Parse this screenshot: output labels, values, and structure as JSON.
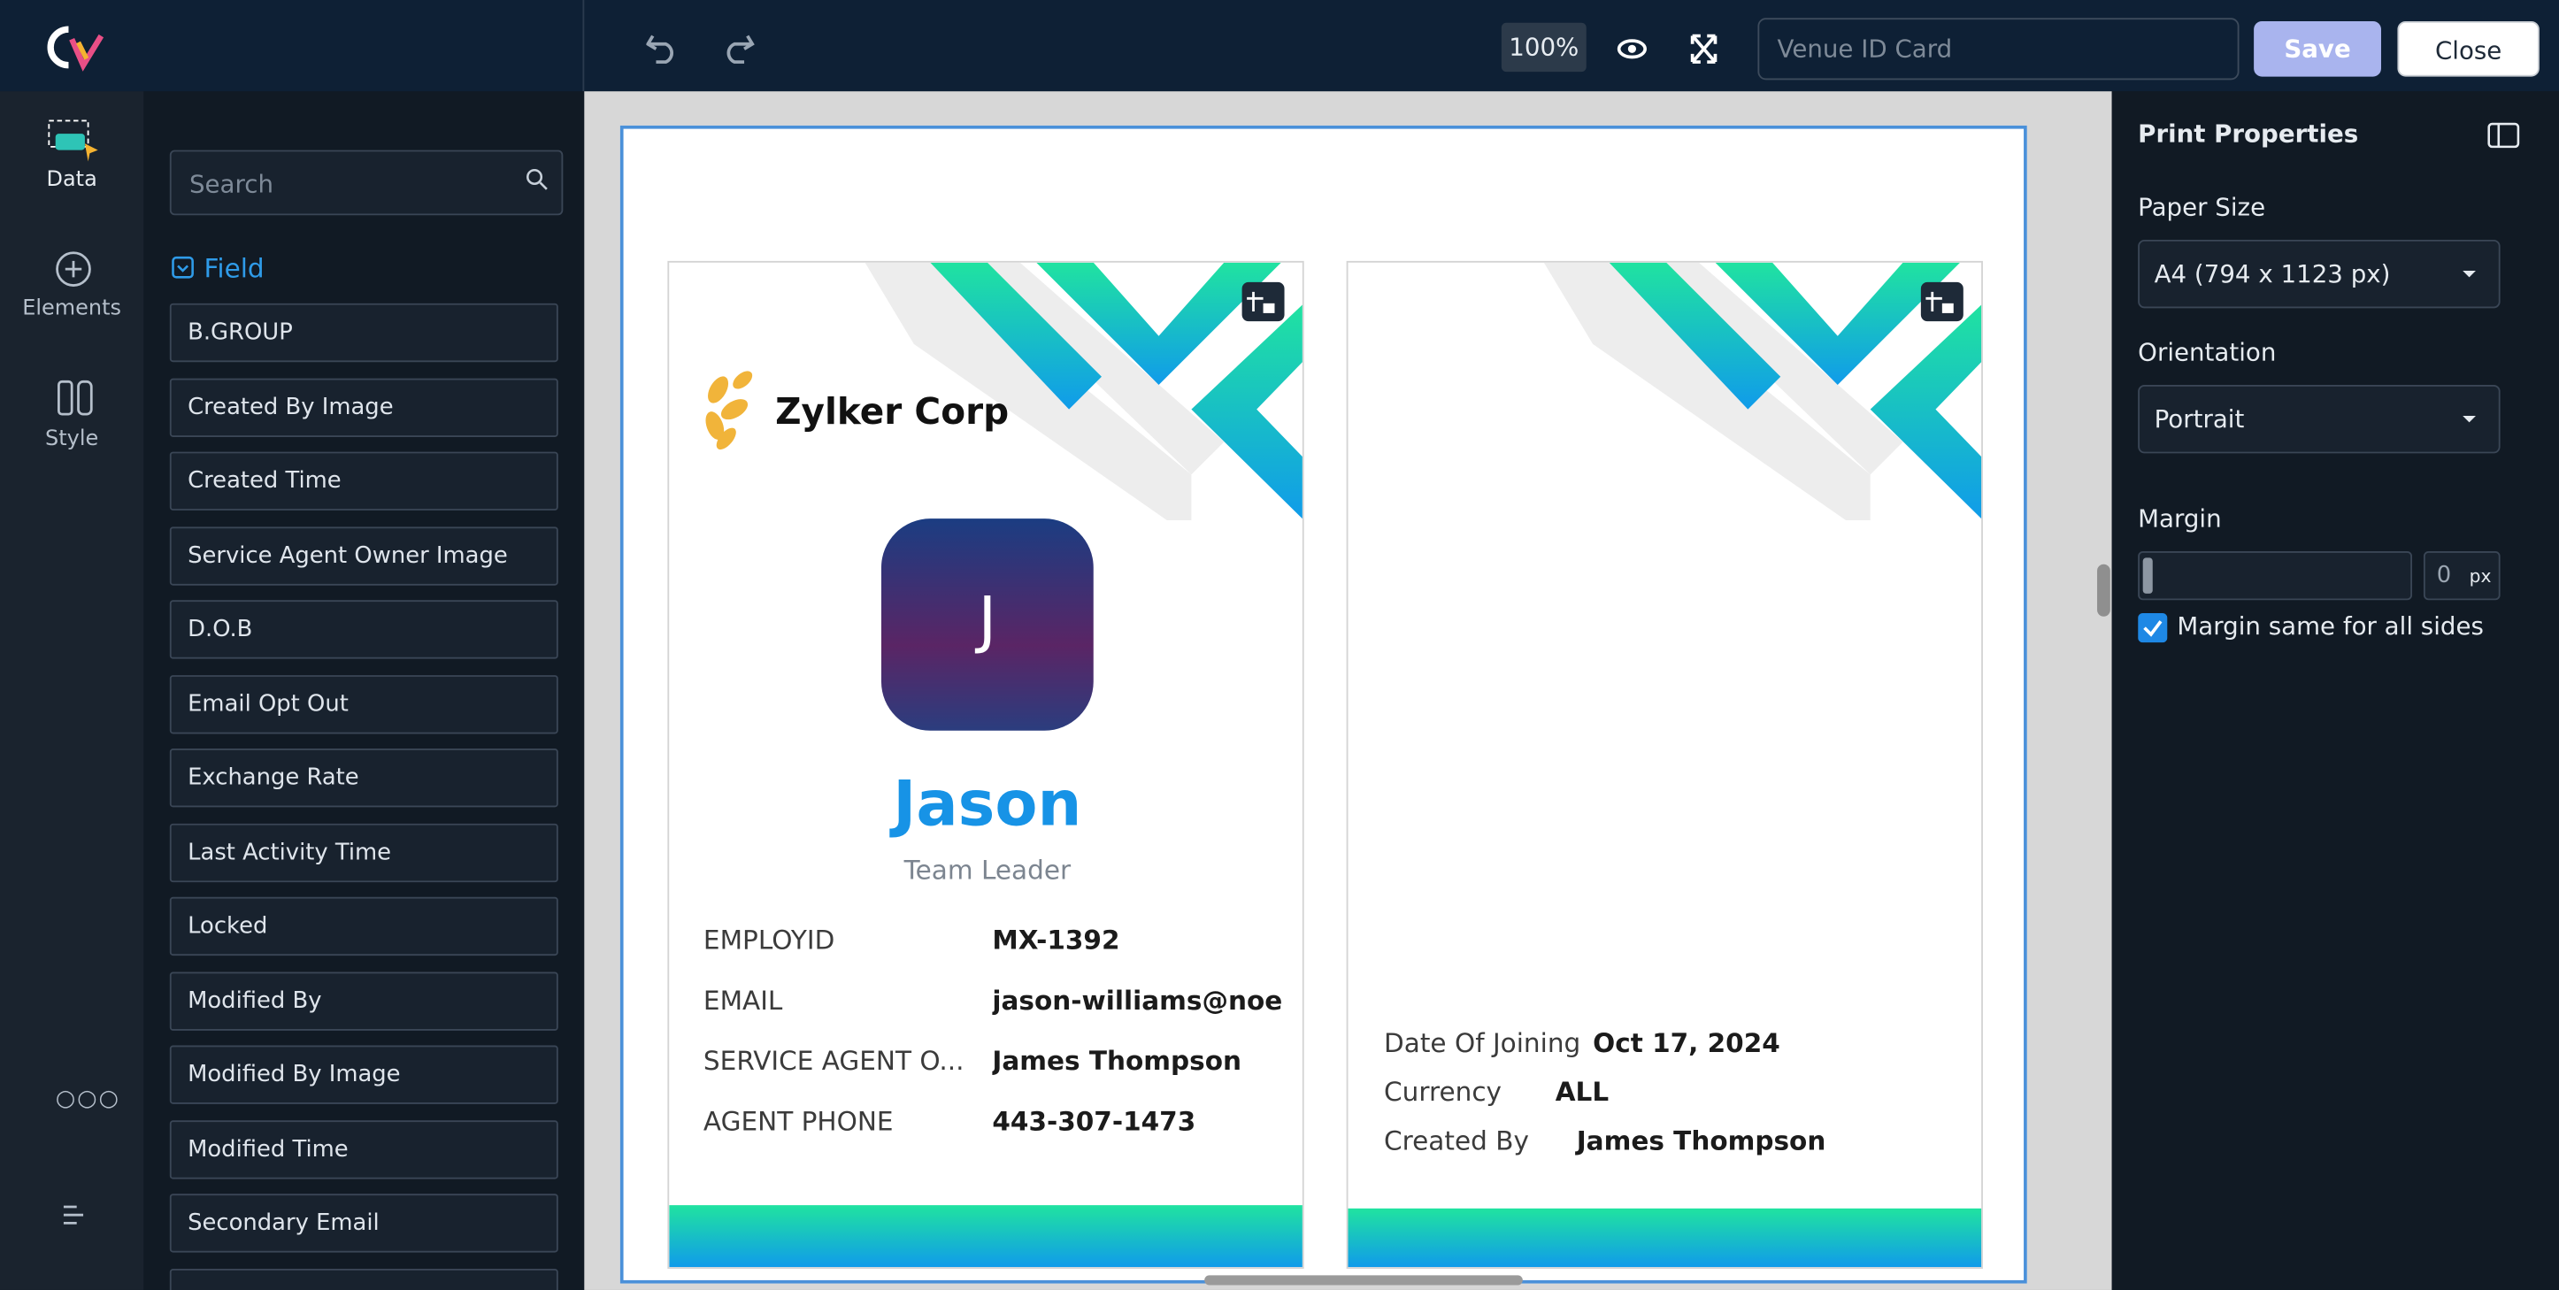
{
  "toolbar": {
    "zoom": "100%",
    "name_placeholder": "Venue ID Card",
    "save": "Save",
    "close": "Close"
  },
  "left_nav": [
    "Data",
    "Elements",
    "Style"
  ],
  "field_panel": {
    "search_placeholder": "Search",
    "section": "Field",
    "fields": [
      "B.GROUP",
      "Created By Image",
      "Created Time",
      "Service Agent Owner Image",
      "D.O.B",
      "Email Opt Out",
      "Exchange Rate",
      "Last Activity Time",
      "Locked",
      "Modified By",
      "Modified By Image",
      "Modified Time",
      "Secondary Email"
    ]
  },
  "card_front": {
    "company": "Zylker Corp",
    "initial": "J",
    "name": "Jason",
    "role": "Team Leader",
    "rows": [
      [
        "EMPLOYID",
        "MX-1392"
      ],
      [
        "EMAIL",
        "jason-williams@noemail.com"
      ],
      [
        "SERVICE AGENT O...",
        "James Thompson"
      ],
      [
        "AGENT PHONE",
        "443-307-1473"
      ]
    ]
  },
  "card_back": {
    "rows": [
      [
        "Date Of Joining",
        "Oct 17, 2024"
      ],
      [
        "Currency",
        "ALL"
      ],
      [
        "Created By",
        "James Thompson"
      ]
    ]
  },
  "properties": {
    "title": "Print Properties",
    "paper_size_label": "Paper Size",
    "paper_size": "A4 (794 x 1123 px)",
    "orientation_label": "Orientation",
    "orientation": "Portrait",
    "margin_label": "Margin",
    "margin_value": "0",
    "margin_unit": "px",
    "margin_same": "Margin same for all sides"
  }
}
